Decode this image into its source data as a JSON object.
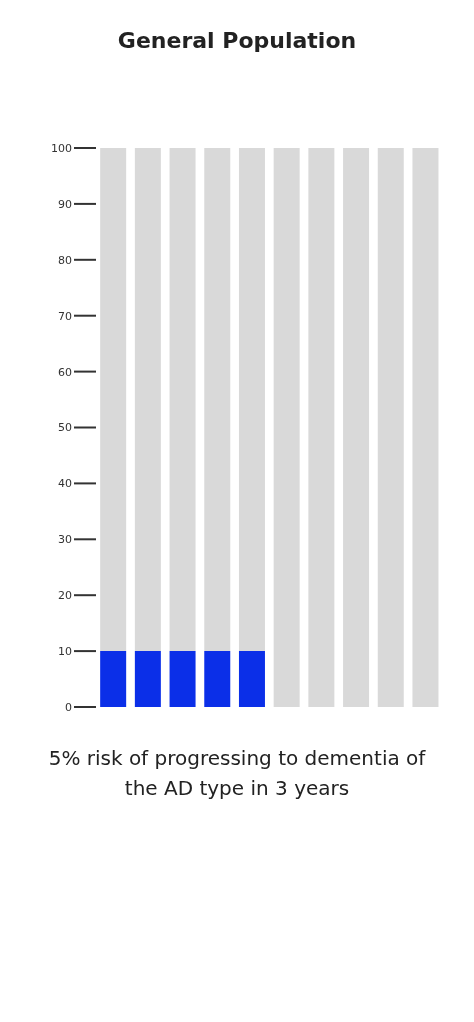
{
  "chart_data": {
    "type": "bar",
    "title": "General Population",
    "categories": [
      null,
      null,
      null,
      null,
      null,
      null,
      null,
      null,
      null,
      null
    ],
    "stacked": true,
    "series": [
      {
        "color": "#0b2fe8",
        "values": [
          10,
          10,
          10,
          10,
          10,
          0,
          0,
          0,
          0,
          0
        ]
      },
      {
        "color": "#d9d9d9",
        "values": [
          90,
          90,
          90,
          90,
          90,
          100,
          100,
          100,
          100,
          100
        ]
      }
    ],
    "ylim": [
      0,
      100
    ],
    "yticks": [
      0,
      10,
      20,
      30,
      40,
      50,
      60,
      70,
      80,
      90,
      100
    ],
    "tick_labels": "y",
    "grid": false,
    "annotations": [
      "5% risk of progressing to dementia of the AD type in 3 years"
    ]
  }
}
